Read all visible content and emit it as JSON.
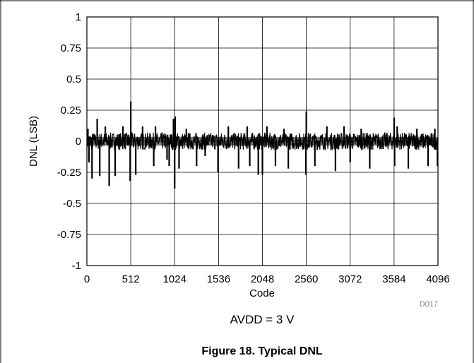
{
  "chart_data": {
    "type": "line",
    "title": "",
    "xlabel": "Code",
    "ylabel": "DNL (LSB)",
    "xlim": [
      0,
      4096
    ],
    "ylim": [
      -1,
      1
    ],
    "x_ticks": [
      0,
      512,
      1024,
      1536,
      2048,
      2560,
      3072,
      3584,
      4096
    ],
    "x_tick_labels": [
      "0",
      "512",
      "1024",
      "1536",
      "2048",
      "2560",
      "3072",
      "3584",
      "4096"
    ],
    "y_ticks": [
      1,
      0.75,
      0.5,
      0.25,
      0,
      -0.25,
      -0.5,
      -0.75,
      -1
    ],
    "y_tick_labels": [
      "1",
      "0.75",
      "0.5",
      "0.25",
      "0",
      "-0.25",
      "-0.5",
      "-0.75",
      "-1"
    ],
    "grid": true,
    "legend": "none",
    "line_color": "#000000",
    "noise_band": {
      "upper": 0.07,
      "lower": -0.07
    },
    "spikes": [
      {
        "x": 12,
        "y": 0.1
      },
      {
        "x": 24,
        "y": -0.17
      },
      {
        "x": 60,
        "y": -0.3
      },
      {
        "x": 120,
        "y": 0.18
      },
      {
        "x": 150,
        "y": -0.28
      },
      {
        "x": 215,
        "y": 0.12
      },
      {
        "x": 260,
        "y": -0.36
      },
      {
        "x": 330,
        "y": -0.28
      },
      {
        "x": 420,
        "y": 0.12
      },
      {
        "x": 505,
        "y": -0.32
      },
      {
        "x": 512,
        "y": 0.32
      },
      {
        "x": 570,
        "y": -0.27
      },
      {
        "x": 650,
        "y": 0.12
      },
      {
        "x": 780,
        "y": -0.2
      },
      {
        "x": 800,
        "y": 0.12
      },
      {
        "x": 935,
        "y": -0.15
      },
      {
        "x": 960,
        "y": -0.2
      },
      {
        "x": 1010,
        "y": 0.18
      },
      {
        "x": 1024,
        "y": -0.38
      },
      {
        "x": 1030,
        "y": 0.2
      },
      {
        "x": 1075,
        "y": -0.22
      },
      {
        "x": 1160,
        "y": 0.1
      },
      {
        "x": 1280,
        "y": -0.2
      },
      {
        "x": 1380,
        "y": -0.12
      },
      {
        "x": 1530,
        "y": -0.25
      },
      {
        "x": 1650,
        "y": 0.12
      },
      {
        "x": 1770,
        "y": -0.22
      },
      {
        "x": 1870,
        "y": 0.12
      },
      {
        "x": 1900,
        "y": -0.2
      },
      {
        "x": 2000,
        "y": -0.27
      },
      {
        "x": 2048,
        "y": -0.27
      },
      {
        "x": 2100,
        "y": 0.12
      },
      {
        "x": 2200,
        "y": -0.2
      },
      {
        "x": 2300,
        "y": 0.1
      },
      {
        "x": 2350,
        "y": -0.22
      },
      {
        "x": 2555,
        "y": -0.27
      },
      {
        "x": 2560,
        "y": 0.24
      },
      {
        "x": 2660,
        "y": -0.2
      },
      {
        "x": 2800,
        "y": 0.12
      },
      {
        "x": 2900,
        "y": -0.24
      },
      {
        "x": 3000,
        "y": 0.12
      },
      {
        "x": 3072,
        "y": -0.17
      },
      {
        "x": 3200,
        "y": 0.1
      },
      {
        "x": 3300,
        "y": -0.22
      },
      {
        "x": 3584,
        "y": 0.19
      },
      {
        "x": 3590,
        "y": -0.2
      },
      {
        "x": 3620,
        "y": 0.12
      },
      {
        "x": 3750,
        "y": -0.22
      },
      {
        "x": 3850,
        "y": 0.1
      },
      {
        "x": 3980,
        "y": -0.2
      },
      {
        "x": 4060,
        "y": 0.1
      },
      {
        "x": 4090,
        "y": -0.2
      }
    ]
  },
  "figure": {
    "id_label": "D017",
    "condition": "AVDD = 3 V",
    "caption": "Figure 18. Typical DNL"
  }
}
